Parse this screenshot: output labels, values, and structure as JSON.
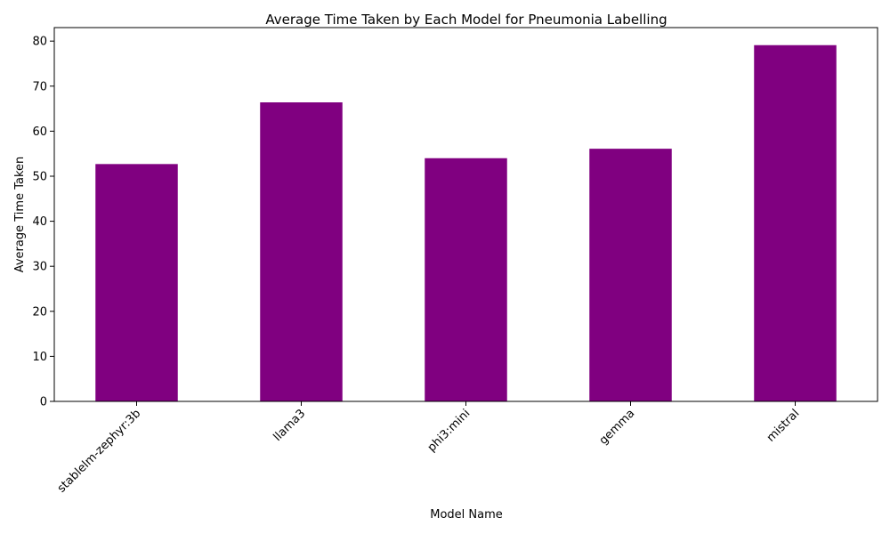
{
  "chart_data": {
    "type": "bar",
    "title": "Average Time Taken by Each Model for Pneumonia Labelling",
    "xlabel": "Model Name",
    "ylabel": "Average Time Taken",
    "categories": [
      "stablelm-zephyr:3b",
      "llama3",
      "phi3:mini",
      "gemma",
      "mistral"
    ],
    "values": [
      52.7,
      66.4,
      54.0,
      56.1,
      79.1
    ],
    "ylim": [
      0,
      83
    ],
    "yticks": [
      0,
      10,
      20,
      30,
      40,
      50,
      60,
      70,
      80
    ],
    "bar_color": "#800080",
    "grid": false,
    "legend": "none"
  }
}
